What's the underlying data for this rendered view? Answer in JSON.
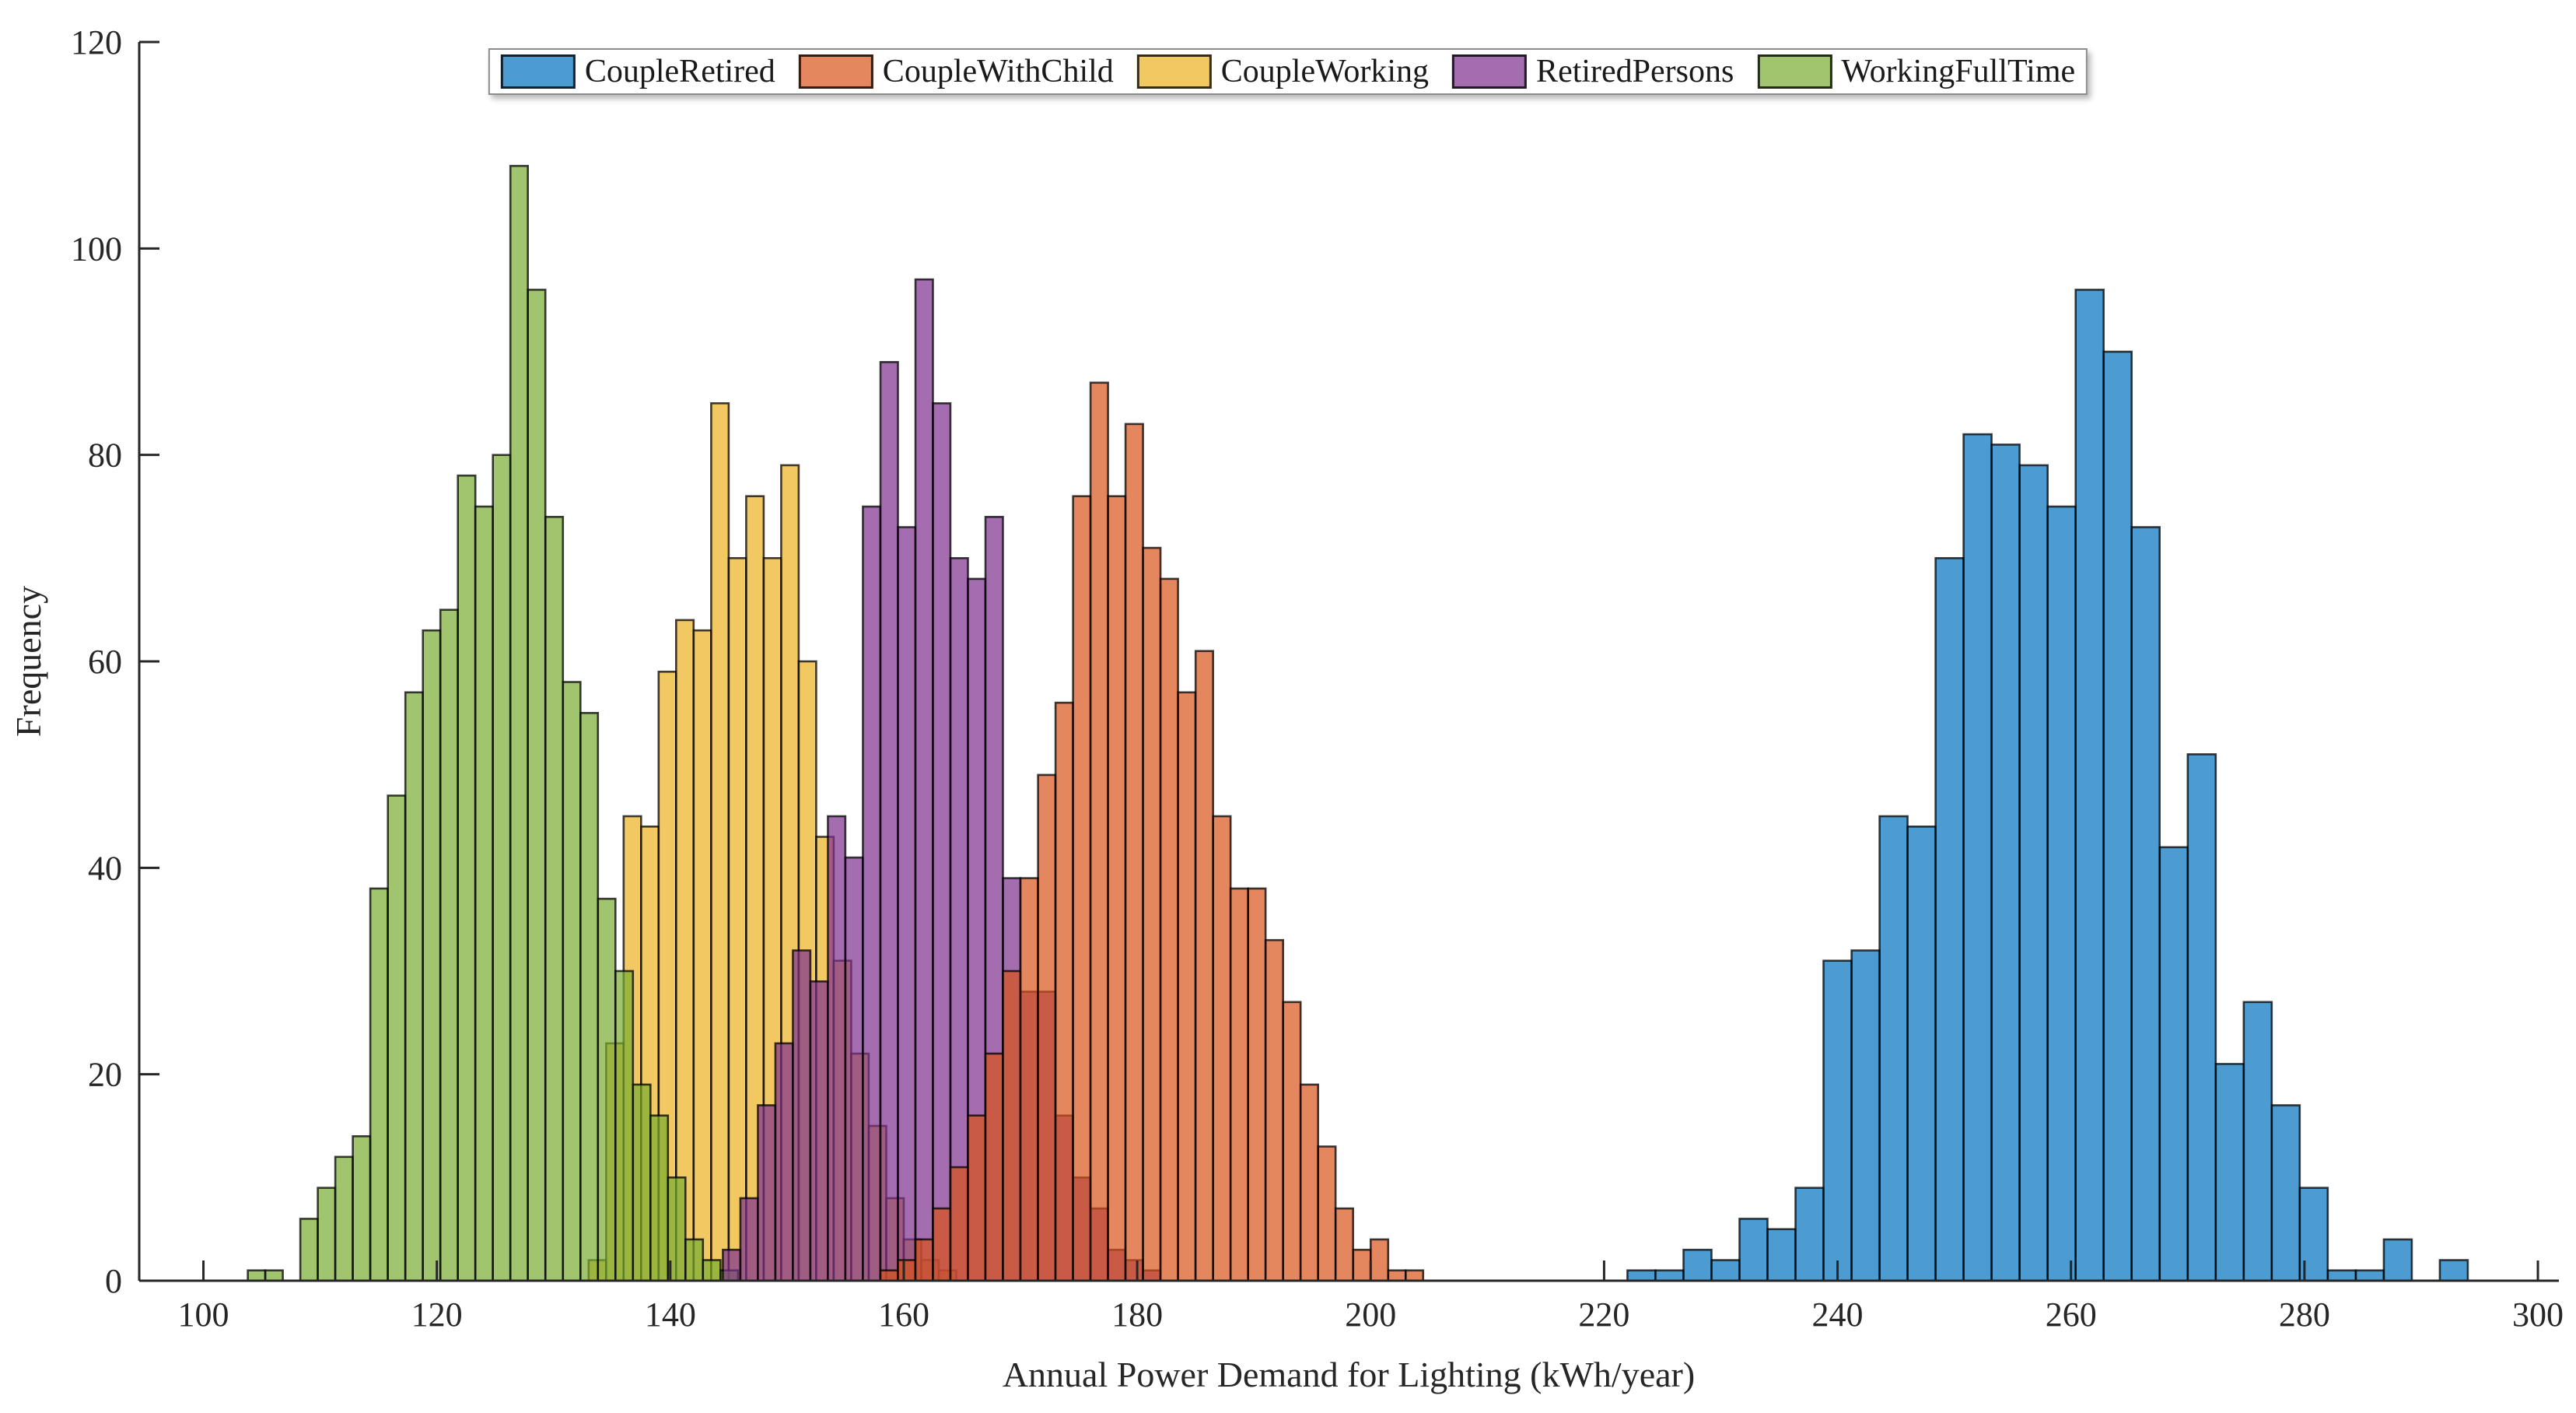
{
  "figure": {
    "background": "#ffffff",
    "axis_color": "#262626",
    "text_color": "#262626"
  },
  "legend": {
    "position": "north",
    "items": [
      {
        "label": "CoupleRetired",
        "color": "rgba(0,114,189,0.7)"
      },
      {
        "label": "CoupleWithChild",
        "color": "rgba(217,83,25,0.7)"
      },
      {
        "label": "CoupleWorking",
        "color": "rgba(237,177,32,0.7)"
      },
      {
        "label": "RetiredPersons",
        "color": "rgba(126,47,142,0.7)"
      },
      {
        "label": "WorkingFullTime",
        "color": "rgba(119,172,48,0.7)"
      }
    ]
  },
  "chart_data": {
    "type": "bar",
    "subtype": "overlaid-histograms",
    "title": "",
    "xlabel": "Annual Power Demand for Lighting (kWh/year)",
    "ylabel": "Frequency",
    "xlim": [
      94.5,
      301.8
    ],
    "ylim": [
      0,
      120
    ],
    "xticks": [
      100,
      120,
      140,
      160,
      180,
      200,
      220,
      240,
      260,
      280,
      300
    ],
    "yticks": [
      0,
      20,
      40,
      60,
      80,
      100,
      120
    ],
    "grid": false,
    "tick_direction": "in",
    "face_alpha": 0.7,
    "edge_color": "rgba(0,0,0,0.75)",
    "series": [
      {
        "name": "CoupleWorking",
        "base_color": "#EDB120",
        "bin_start": 133.0,
        "bin_width": 1.5,
        "counts": [
          2,
          23,
          45,
          44,
          59,
          64,
          63,
          85,
          70,
          76,
          70,
          79,
          60,
          43,
          31,
          22,
          15,
          8,
          4,
          2,
          1
        ]
      },
      {
        "name": "WorkingFullTime",
        "base_color": "#77AC30",
        "bin_start": 103.8,
        "bin_width": 1.5,
        "counts": [
          1,
          1,
          0,
          6,
          9,
          12,
          14,
          38,
          47,
          57,
          63,
          65,
          78,
          75,
          80,
          108,
          96,
          74,
          58,
          55,
          37,
          30,
          19,
          16,
          10,
          4,
          2,
          1
        ]
      },
      {
        "name": "RetiredPersons",
        "base_color": "#7E2F8E",
        "bin_start": 144.5,
        "bin_width": 1.5,
        "counts": [
          3,
          8,
          17,
          23,
          32,
          29,
          45,
          41,
          75,
          89,
          73,
          97,
          85,
          70,
          68,
          74,
          39,
          28,
          28,
          16,
          10,
          7,
          3,
          2,
          1
        ]
      },
      {
        "name": "CoupleWithChild",
        "base_color": "#D95319",
        "bin_start": 158.0,
        "bin_width": 1.5,
        "counts": [
          1,
          2,
          4,
          7,
          11,
          16,
          22,
          30,
          39,
          49,
          56,
          76,
          87,
          76,
          83,
          71,
          68,
          57,
          61,
          45,
          38,
          38,
          33,
          27,
          19,
          13,
          7,
          3,
          4,
          1,
          1
        ]
      },
      {
        "name": "CoupleRetired",
        "base_color": "#0072BD",
        "bin_start": 222.0,
        "bin_width": 2.4,
        "counts": [
          1,
          1,
          3,
          2,
          6,
          5,
          9,
          31,
          32,
          45,
          44,
          70,
          82,
          81,
          79,
          75,
          96,
          90,
          73,
          42,
          51,
          21,
          27,
          17,
          9,
          1,
          1,
          4,
          0,
          2
        ]
      }
    ]
  }
}
